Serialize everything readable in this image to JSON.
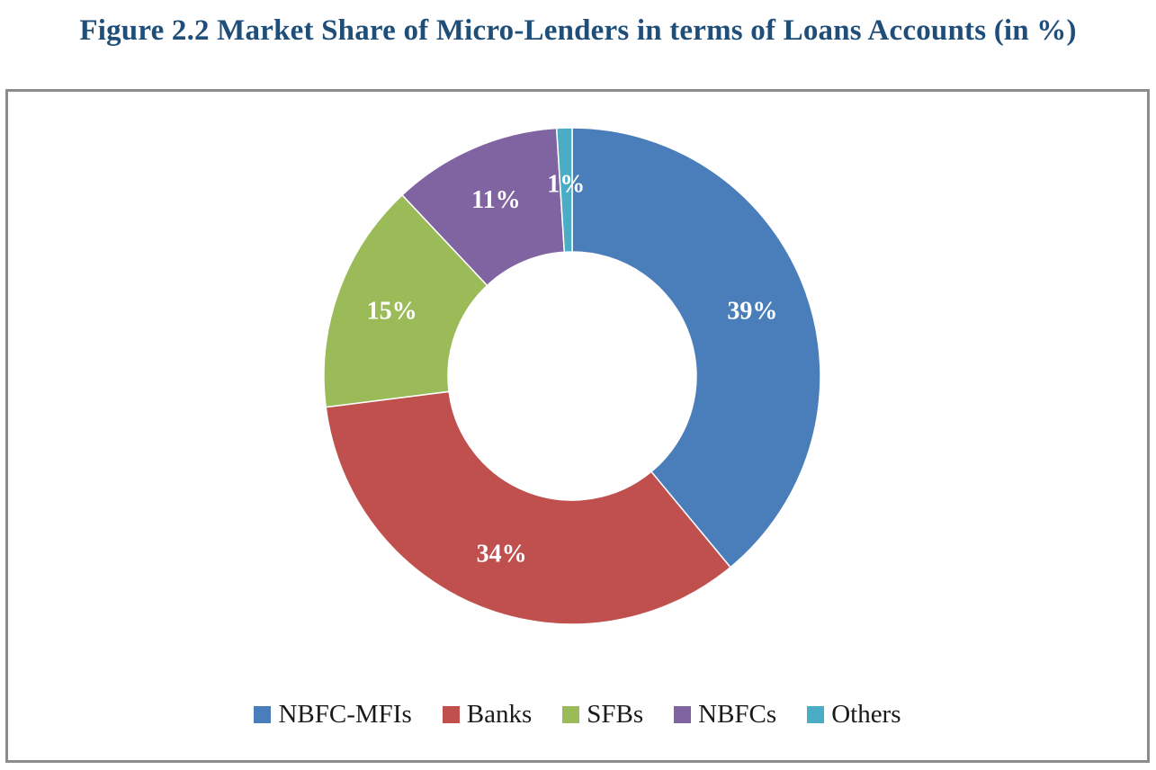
{
  "title": "Figure 2.2 Market Share of Micro-Lenders in terms of Loans Accounts (in %)",
  "chart_data": {
    "type": "pie",
    "variant": "donut",
    "title": "Figure 2.2 Market Share of Micro-Lenders in terms of Loans Accounts (in %)",
    "categories": [
      "NBFC-MFIs",
      "Banks",
      "SFBs",
      "NBFCs",
      "Others"
    ],
    "values": [
      39,
      34,
      15,
      11,
      1
    ],
    "labels": [
      "39%",
      "34%",
      "15%",
      "11%",
      "1%"
    ],
    "colors": [
      "#4a7ebb",
      "#c0504d",
      "#9bbb59",
      "#8064a2",
      "#4bacc6"
    ],
    "legend_position": "bottom",
    "start_angle": "12 o'clock, clockwise"
  }
}
